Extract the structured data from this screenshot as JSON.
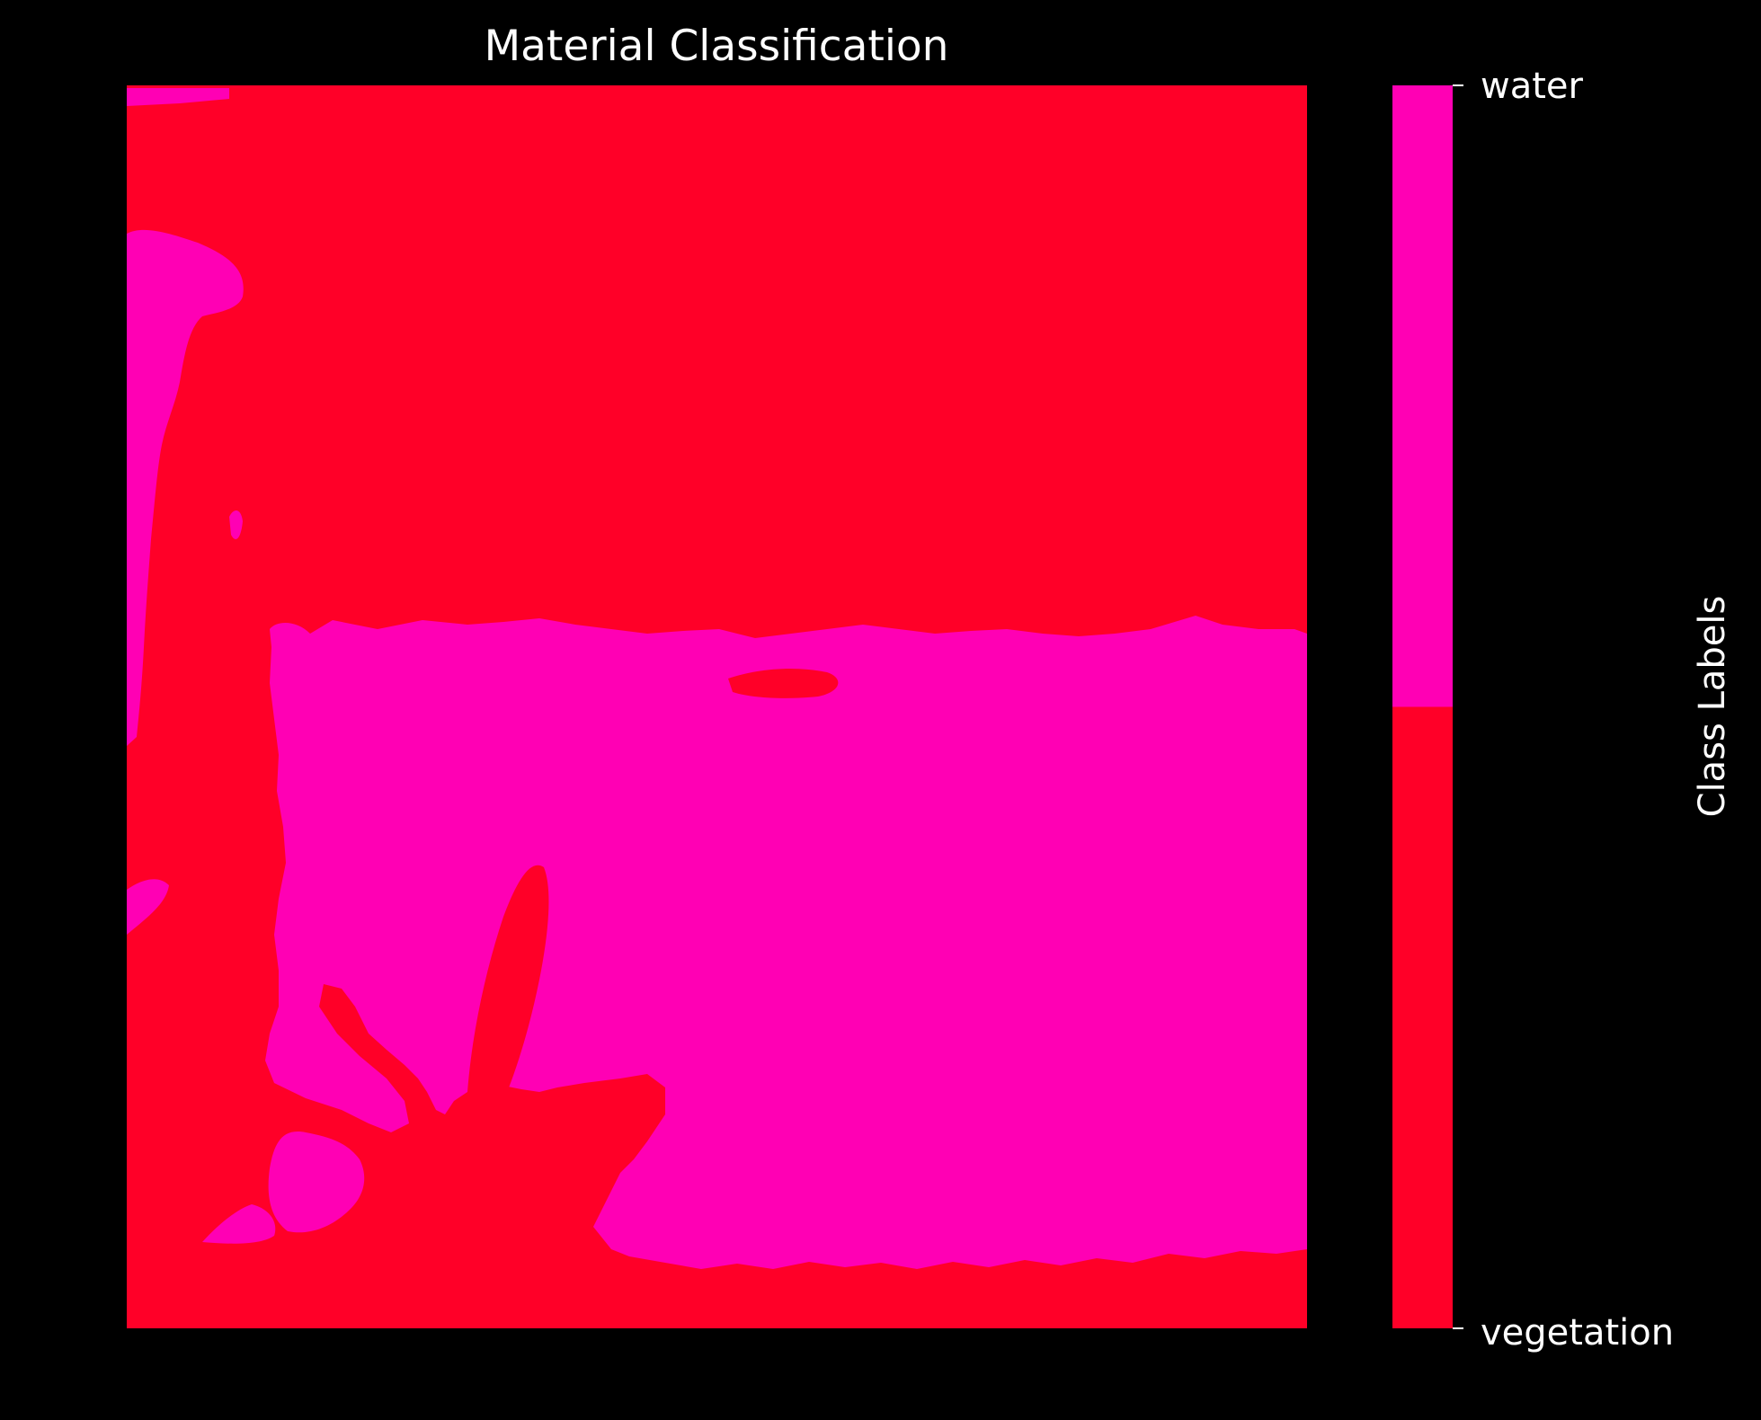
{
  "chart_data": {
    "type": "heatmap",
    "title": "Material Classification",
    "colors": {
      "background": "#000000",
      "text": "#ffffff"
    },
    "classes": [
      {
        "label": "vegetation",
        "color": "#ff0028"
      },
      {
        "label": "water",
        "color": "#ff00b4"
      }
    ],
    "colorbar": {
      "label": "Class Labels",
      "ticks": [
        "vegetation",
        "water"
      ]
    }
  }
}
